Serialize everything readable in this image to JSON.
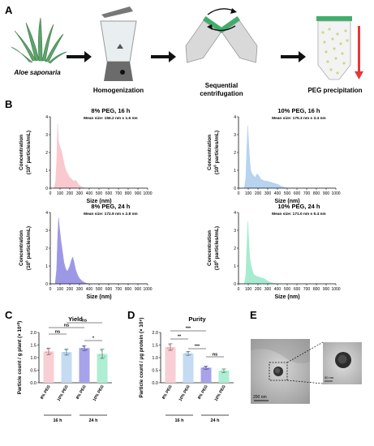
{
  "panels": {
    "A": "A",
    "B": "B",
    "C": "C",
    "D": "D",
    "E": "E"
  },
  "workflow": {
    "plant": "Aloe saponaria",
    "homogenization": "Homogenization",
    "centrifugation_line1": "Sequential",
    "centrifugation_line2": "centrifugation",
    "peg": "PEG precipitation"
  },
  "nta_axis": {
    "ylabel_line1": "Concentration",
    "ylabel_line2a": "(10",
    "ylabel_sup": "6",
    "ylabel_line2b": " particles/mL)",
    "xlabel": "Size (nm)",
    "xticks": [
      "0",
      "100",
      "200",
      "300",
      "400",
      "500",
      "600",
      "700",
      "800",
      "900",
      "1000"
    ],
    "yticks": [
      "0",
      "1",
      "2",
      "3",
      "4"
    ]
  },
  "colors": {
    "pink": "#f9c9cf",
    "blue": "#b7d3f0",
    "purple": "#9d98e6",
    "green": "#a6ecd0",
    "bar_pink": "#f8cfd4",
    "bar_blue": "#c4dbf2",
    "bar_purple": "#a7a3ea",
    "bar_green": "#aeeed3"
  },
  "chart_data": [
    {
      "type": "area",
      "title": "8%  PEG, 16 h",
      "subtitle": "Mean size: 156.2 nm ± 1.6 nm",
      "xlabel": "Size (nm)",
      "ylabel": "Concentration (10^6 particles/mL)",
      "xlim": [
        0,
        1000
      ],
      "ylim": [
        0,
        4
      ],
      "color": "#f9c9cf",
      "x": [
        0,
        40,
        55,
        65,
        75,
        85,
        100,
        115,
        130,
        145,
        160,
        180,
        200,
        220,
        240,
        260,
        280,
        300,
        330,
        360,
        1000
      ],
      "y": [
        0,
        0,
        0.4,
        1.5,
        3.6,
        2.6,
        2.3,
        2.1,
        1.7,
        1.3,
        1.0,
        0.8,
        0.6,
        0.5,
        0.4,
        0.45,
        0.3,
        0.15,
        0.05,
        0,
        0
      ]
    },
    {
      "type": "area",
      "title": "10%  PEG, 16 h",
      "subtitle": "Mean size: 175.3 nm ± 3.4 nm",
      "xlabel": "Size (nm)",
      "ylabel": "Concentration (10^6 particles/mL)",
      "xlim": [
        0,
        1000
      ],
      "ylim": [
        0,
        4
      ],
      "color": "#b7d3f0",
      "x": [
        0,
        60,
        75,
        85,
        95,
        105,
        115,
        125,
        140,
        155,
        170,
        190,
        210,
        230,
        250,
        270,
        290,
        320,
        350,
        380,
        410,
        440,
        470,
        500,
        1000
      ],
      "y": [
        0,
        0,
        0.6,
        2.2,
        3.5,
        2.5,
        1.6,
        1.0,
        0.8,
        0.7,
        0.6,
        0.8,
        0.7,
        0.5,
        0.45,
        0.4,
        0.4,
        0.35,
        0.3,
        0.25,
        0.2,
        0.1,
        0.05,
        0,
        0
      ]
    },
    {
      "type": "area",
      "title": "8%  PEG, 24 h",
      "subtitle": "Mean size: 172.9 nm ± 2.8 nm",
      "xlabel": "Size (nm)",
      "ylabel": "Concentration (10^6 particles/mL)",
      "xlim": [
        0,
        1000
      ],
      "ylim": [
        0,
        4
      ],
      "color": "#9d98e6",
      "x": [
        0,
        50,
        65,
        75,
        85,
        95,
        110,
        125,
        140,
        155,
        170,
        185,
        200,
        215,
        230,
        245,
        260,
        280,
        300,
        330,
        360,
        400,
        1000
      ],
      "y": [
        0,
        0,
        0.8,
        2.5,
        3.7,
        3.1,
        2.4,
        1.8,
        1.2,
        0.9,
        0.7,
        0.8,
        1.0,
        1.3,
        1.5,
        1.2,
        0.8,
        0.5,
        0.3,
        0.15,
        0.05,
        0,
        0
      ]
    },
    {
      "type": "area",
      "title": "10%  PEG, 24 h",
      "subtitle": "Mean size: 171.0 nm ± 5.4 nm",
      "xlabel": "Size (nm)",
      "ylabel": "Concentration (10^6 particles/mL)",
      "xlim": [
        0,
        1000
      ],
      "ylim": [
        0,
        4
      ],
      "color": "#a6ecd0",
      "x": [
        0,
        60,
        75,
        85,
        95,
        105,
        115,
        130,
        145,
        160,
        180,
        200,
        230,
        260,
        290,
        320,
        350,
        380,
        410,
        1000
      ],
      "y": [
        0,
        0,
        0.5,
        2.0,
        3.5,
        2.5,
        1.5,
        1.0,
        0.7,
        0.5,
        0.45,
        0.4,
        0.35,
        0.3,
        0.2,
        0.1,
        0.05,
        0.02,
        0,
        0
      ]
    },
    {
      "type": "bar",
      "title": "Yield",
      "ylabel": "Particle count / g plant (× 10¹⁰)",
      "ylim": [
        0,
        2.0
      ],
      "yticks": [
        "0.0",
        "0.5",
        "1.0",
        "1.5",
        "2.0"
      ],
      "categories": [
        "8% PEG",
        "10% PEG",
        "8% PEG",
        "10% PEG"
      ],
      "groups": [
        "16 h",
        "24 h"
      ],
      "values": [
        1.25,
        1.22,
        1.38,
        1.15
      ],
      "errors": [
        0.13,
        0.12,
        0.1,
        0.18
      ],
      "significance": [
        {
          "pair": [
            0,
            1
          ],
          "label": "ns"
        },
        {
          "pair": [
            0,
            2
          ],
          "label": "ns"
        },
        {
          "pair": [
            1,
            3
          ],
          "label": "ns"
        },
        {
          "pair": [
            2,
            3
          ],
          "label": "*"
        }
      ]
    },
    {
      "type": "bar",
      "title": "Purity",
      "ylabel": "Particle count / μg protein (× 10⁸)",
      "ylim": [
        0,
        2.0
      ],
      "yticks": [
        "0.0",
        "0.5",
        "1.0",
        "1.5",
        "2.0"
      ],
      "categories": [
        "8% PEG",
        "10% PEG",
        "8% PEG",
        "10% PEG"
      ],
      "groups": [
        "16 h",
        "24 h"
      ],
      "values": [
        1.42,
        1.17,
        0.6,
        0.48
      ],
      "errors": [
        0.13,
        0.08,
        0.06,
        0.07
      ],
      "significance": [
        {
          "pair": [
            0,
            1
          ],
          "label": "**"
        },
        {
          "pair": [
            0,
            2
          ],
          "label": "***"
        },
        {
          "pair": [
            1,
            2
          ],
          "label": "***"
        },
        {
          "pair": [
            2,
            3
          ],
          "label": "ns"
        }
      ]
    }
  ],
  "tem": {
    "scale_main": "200 nm",
    "scale_inset": "50 nm"
  }
}
